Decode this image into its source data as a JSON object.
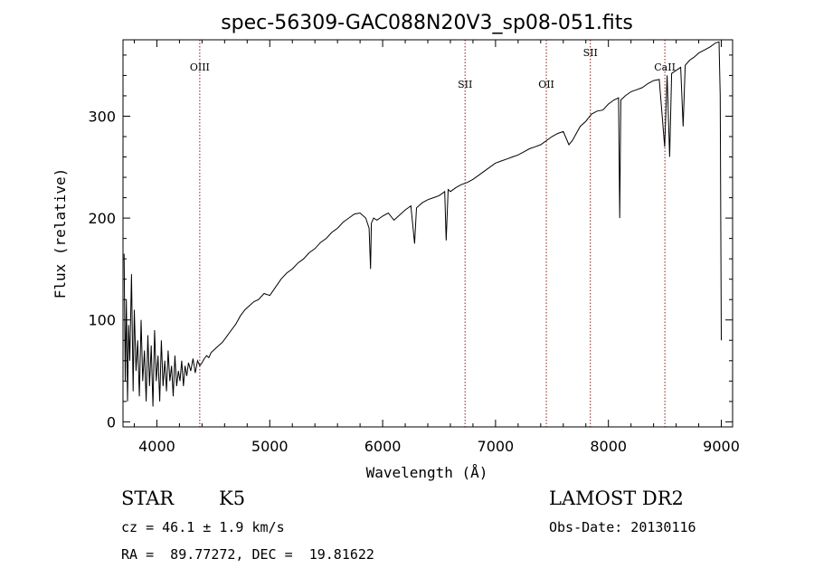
{
  "chart_data": {
    "type": "line",
    "title": "spec-56309-GAC088N20V3_sp08-051.fits",
    "xlabel": "Wavelength (Å)",
    "ylabel": "Flux (relative)",
    "xlim": [
      3700,
      9100
    ],
    "ylim": [
      -5,
      375
    ],
    "xticks": [
      4000,
      5000,
      6000,
      7000,
      8000,
      9000
    ],
    "yticks": [
      0,
      100,
      200,
      300
    ],
    "grid": false,
    "line_color": "#000000",
    "marker_color": "#8b1a1a",
    "reference_lines": [
      {
        "label": "OIII",
        "wavelength": 4380
      },
      {
        "label": "SII",
        "wavelength": 6730
      },
      {
        "label": "OII",
        "wavelength": 7450
      },
      {
        "label": "SII",
        "wavelength": 7840
      },
      {
        "label": "CaII",
        "wavelength": 8500
      }
    ],
    "series": [
      {
        "x": [
          3710,
          3720,
          3730,
          3740,
          3750,
          3760,
          3775,
          3790,
          3800,
          3815,
          3830,
          3845,
          3860,
          3875,
          3890,
          3905,
          3920,
          3935,
          3950,
          3965,
          3980,
          3995,
          4010,
          4025,
          4040,
          4055,
          4070,
          4085,
          4100,
          4115,
          4130,
          4145,
          4160,
          4175,
          4190,
          4205,
          4220,
          4235,
          4250,
          4265,
          4280,
          4300,
          4320,
          4340,
          4360,
          4380,
          4400,
          4420,
          4440,
          4460,
          4480,
          4500,
          4540,
          4580,
          4620,
          4660,
          4700,
          4740,
          4780,
          4820,
          4860,
          4900,
          4950,
          5000,
          5050,
          5100,
          5150,
          5200,
          5250,
          5300,
          5350,
          5400,
          5450,
          5500,
          5550,
          5600,
          5650,
          5700,
          5750,
          5800,
          5850,
          5880,
          5893,
          5900,
          5920,
          5950,
          6000,
          6050,
          6100,
          6150,
          6200,
          6250,
          6283,
          6300,
          6350,
          6400,
          6450,
          6500,
          6550,
          6563,
          6580,
          6600,
          6650,
          6700,
          6750,
          6800,
          6850,
          6900,
          6950,
          7000,
          7050,
          7100,
          7150,
          7200,
          7250,
          7300,
          7350,
          7400,
          7450,
          7500,
          7550,
          7600,
          7650,
          7680,
          7700,
          7750,
          7800,
          7850,
          7900,
          7950,
          8000,
          8050,
          8090,
          8100,
          8110,
          8130,
          8150,
          8200,
          8250,
          8300,
          8350,
          8400,
          8450,
          8498,
          8520,
          8542,
          8560,
          8600,
          8640,
          8662,
          8680,
          8720,
          8760,
          8800,
          8850,
          8900,
          8950,
          8980,
          8990,
          9000
        ],
        "y": [
          165,
          40,
          120,
          20,
          95,
          60,
          145,
          30,
          110,
          50,
          80,
          25,
          100,
          40,
          70,
          20,
          85,
          35,
          75,
          15,
          90,
          40,
          65,
          20,
          80,
          35,
          60,
          30,
          70,
          40,
          55,
          25,
          65,
          35,
          50,
          40,
          60,
          35,
          55,
          45,
          58,
          50,
          62,
          48,
          60,
          55,
          58,
          62,
          65,
          63,
          68,
          70,
          74,
          78,
          84,
          90,
          96,
          104,
          110,
          114,
          118,
          120,
          126,
          124,
          132,
          140,
          146,
          150,
          156,
          160,
          166,
          170,
          176,
          180,
          186,
          190,
          196,
          200,
          204,
          205,
          200,
          190,
          150,
          195,
          200,
          198,
          202,
          205,
          198,
          203,
          208,
          212,
          175,
          210,
          215,
          218,
          220,
          222,
          226,
          178,
          228,
          226,
          230,
          233,
          235,
          238,
          242,
          246,
          250,
          254,
          256,
          258,
          260,
          262,
          265,
          268,
          270,
          272,
          276,
          280,
          283,
          285,
          272,
          276,
          280,
          290,
          295,
          302,
          305,
          306,
          312,
          316,
          318,
          200,
          316,
          318,
          320,
          324,
          326,
          328,
          332,
          335,
          336,
          270,
          340,
          260,
          342,
          345,
          348,
          290,
          350,
          355,
          358,
          362,
          365,
          368,
          372,
          373,
          320,
          80
        ]
      }
    ]
  },
  "info": {
    "object_class": "STAR",
    "subclass": "K5",
    "survey": "LAMOST DR2",
    "redshift_text": "cz = 46.1 ± 1.9 km/s",
    "obs_date_text": "Obs-Date: 20130116",
    "coords_text": "RA =  89.77272, DEC =  19.81622"
  }
}
